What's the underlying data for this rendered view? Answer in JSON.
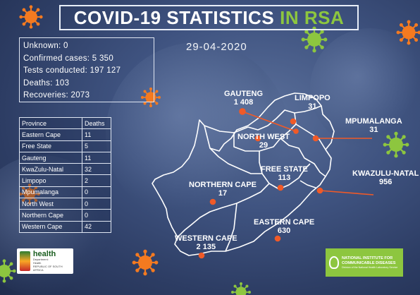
{
  "title": {
    "main": "COVID-19 STATISTICS",
    "highlight": "IN RSA",
    "highlight_color": "#8dc63f"
  },
  "date": "29-04-2020",
  "summary": [
    {
      "label": "Unknown:",
      "value": "0"
    },
    {
      "label": "Confirmed cases:",
      "value": "5 350"
    },
    {
      "label": "Tests conducted:",
      "value": "197 127"
    },
    {
      "label": "Deaths:",
      "value": "103"
    },
    {
      "label": "Recoveries:",
      "value": "2073"
    }
  ],
  "deaths_table": {
    "headers": [
      "Province",
      "Deaths"
    ],
    "rows": [
      [
        "Eastern Cape",
        "11"
      ],
      [
        "Free State",
        "5"
      ],
      [
        "Gauteng",
        "11"
      ],
      [
        "KwaZulu-Natal",
        "32"
      ],
      [
        "Limpopo",
        "2"
      ],
      [
        "Mpumalanga",
        "0"
      ],
      [
        "North West",
        "0"
      ],
      [
        "Northern Cape",
        "0"
      ],
      [
        "Western Cape",
        "42"
      ]
    ]
  },
  "provinces": [
    {
      "id": "gauteng",
      "name": "GAUTENG",
      "cases": "1 408"
    },
    {
      "id": "limpopo",
      "name": "LIMPOPO",
      "cases": "31"
    },
    {
      "id": "mpumalanga",
      "name": "MPUMALANGA",
      "cases": "31"
    },
    {
      "id": "north-west",
      "name": "NORTH WEST",
      "cases": "29"
    },
    {
      "id": "free-state",
      "name": "FREE STATE",
      "cases": "113"
    },
    {
      "id": "kwazulu-natal",
      "name": "KWAZULU-NATAL",
      "cases": "956"
    },
    {
      "id": "northern-cape",
      "name": "NORTHERN CAPE",
      "cases": "17"
    },
    {
      "id": "eastern-cape",
      "name": "EASTERN CAPE",
      "cases": "630"
    },
    {
      "id": "western-cape",
      "name": "WESTERN CAPE",
      "cases": "2 135"
    }
  ],
  "logos": {
    "health": {
      "name": "health",
      "sub1": "Department:",
      "sub2": "Health",
      "sub3": "REPUBLIC OF SOUTH AFRICA"
    },
    "nicd": {
      "line1": "NATIONAL INSTITUTE FOR",
      "line2": "COMMUNICABLE DISEASES",
      "line3": "Division of the National Health Laboratory Service"
    }
  },
  "colors": {
    "marker": "#f05a28",
    "virus_orange": "#f47a20",
    "virus_green": "#8dc63f"
  }
}
